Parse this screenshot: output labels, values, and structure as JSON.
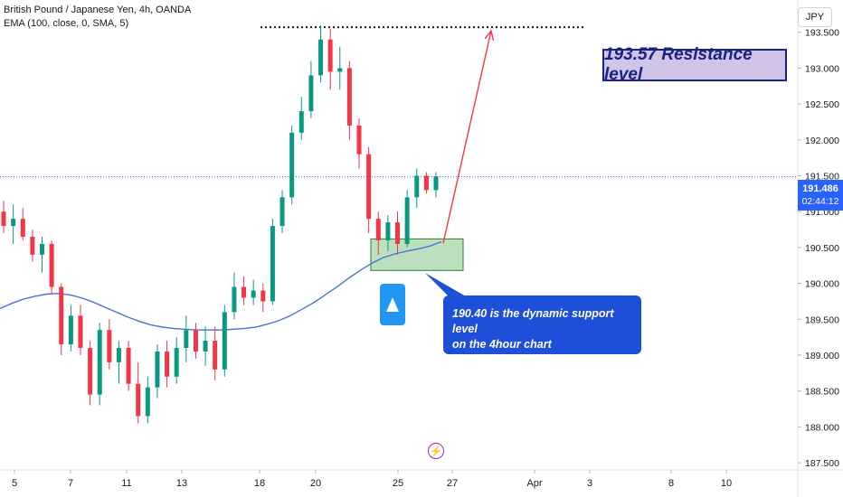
{
  "header": {
    "symbol_line": "British Pound / Japanese Yen, 4h, OANDA",
    "indicator_line": "EMA (100, close, 0, SMA, 5)"
  },
  "currency_unit": "JPY",
  "last_price": {
    "price": "191.486",
    "countdown": "02:44:12"
  },
  "annotations": {
    "resistance_label": "193.57 Resistance level",
    "support_label_line1": "190.40 is the dynamic support level",
    "support_label_line2": "on the 4hour chart"
  },
  "colors": {
    "up": "#089981",
    "down": "#f23645",
    "ema": "#4a72d8",
    "accent": "#2962ff",
    "support_zone": "#a5d6a7",
    "arrow": "#f23645"
  },
  "chart_data": {
    "type": "candlestick",
    "title": "",
    "ylim": [
      187.4,
      193.95
    ],
    "y_ticks": [
      "187.500",
      "188.000",
      "188.500",
      "189.000",
      "189.500",
      "190.000",
      "190.500",
      "191.000",
      "191.500",
      "192.000",
      "192.500",
      "193.000",
      "193.500"
    ],
    "x_tick_labels": [
      "5",
      "7",
      "11",
      "13",
      "18",
      "20",
      "25",
      "27",
      "Apr",
      "3",
      "8",
      "10"
    ],
    "resistance_level": 193.57,
    "support_zone": [
      190.18,
      190.62
    ],
    "current_price": 191.486,
    "ema_series": [
      189.65,
      189.72,
      189.78,
      189.82,
      189.85,
      189.86,
      189.84,
      189.8,
      189.74,
      189.67,
      189.6,
      189.53,
      189.47,
      189.42,
      189.39,
      189.37,
      189.36,
      189.35,
      189.35,
      189.35,
      189.36,
      189.37,
      189.39,
      189.43,
      189.48,
      189.55,
      189.64,
      189.73,
      189.84,
      189.95,
      190.07,
      190.18,
      190.28,
      190.36,
      190.41,
      190.45,
      190.48,
      190.52,
      190.58
    ],
    "candles": [
      {
        "o": 191.0,
        "h": 191.15,
        "l": 190.7,
        "c": 190.8
      },
      {
        "o": 190.8,
        "h": 191.1,
        "l": 190.55,
        "c": 190.9
      },
      {
        "o": 190.9,
        "h": 191.05,
        "l": 190.6,
        "c": 190.65
      },
      {
        "o": 190.65,
        "h": 190.75,
        "l": 190.3,
        "c": 190.4
      },
      {
        "o": 190.4,
        "h": 190.65,
        "l": 190.15,
        "c": 190.55
      },
      {
        "o": 190.55,
        "h": 190.6,
        "l": 189.85,
        "c": 189.95
      },
      {
        "o": 189.95,
        "h": 190.0,
        "l": 189.0,
        "c": 189.15
      },
      {
        "o": 189.15,
        "h": 189.7,
        "l": 189.05,
        "c": 189.55
      },
      {
        "o": 189.55,
        "h": 189.7,
        "l": 189.0,
        "c": 189.1
      },
      {
        "o": 189.1,
        "h": 189.2,
        "l": 188.3,
        "c": 188.45
      },
      {
        "o": 188.45,
        "h": 189.45,
        "l": 188.3,
        "c": 189.35
      },
      {
        "o": 189.35,
        "h": 189.5,
        "l": 188.8,
        "c": 188.9
      },
      {
        "o": 188.9,
        "h": 189.2,
        "l": 188.6,
        "c": 189.1
      },
      {
        "o": 189.1,
        "h": 189.2,
        "l": 188.5,
        "c": 188.6
      },
      {
        "o": 188.6,
        "h": 188.9,
        "l": 188.05,
        "c": 188.15
      },
      {
        "o": 188.15,
        "h": 188.7,
        "l": 188.05,
        "c": 188.55
      },
      {
        "o": 188.55,
        "h": 189.15,
        "l": 188.4,
        "c": 189.05
      },
      {
        "o": 189.05,
        "h": 189.2,
        "l": 188.55,
        "c": 188.7
      },
      {
        "o": 188.7,
        "h": 189.25,
        "l": 188.6,
        "c": 189.1
      },
      {
        "o": 189.1,
        "h": 189.55,
        "l": 188.9,
        "c": 189.35
      },
      {
        "o": 189.35,
        "h": 189.45,
        "l": 188.95,
        "c": 189.05
      },
      {
        "o": 189.05,
        "h": 189.4,
        "l": 188.85,
        "c": 189.2
      },
      {
        "o": 189.2,
        "h": 189.4,
        "l": 188.65,
        "c": 188.8
      },
      {
        "o": 188.8,
        "h": 189.7,
        "l": 188.7,
        "c": 189.6
      },
      {
        "o": 189.6,
        "h": 190.15,
        "l": 189.5,
        "c": 189.95
      },
      {
        "o": 189.95,
        "h": 190.1,
        "l": 189.7,
        "c": 189.8
      },
      {
        "o": 189.8,
        "h": 190.05,
        "l": 189.7,
        "c": 189.9
      },
      {
        "o": 189.9,
        "h": 190.0,
        "l": 189.6,
        "c": 189.75
      },
      {
        "o": 189.75,
        "h": 190.9,
        "l": 189.7,
        "c": 190.8
      },
      {
        "o": 190.8,
        "h": 191.3,
        "l": 190.7,
        "c": 191.2
      },
      {
        "o": 191.2,
        "h": 192.2,
        "l": 191.1,
        "c": 192.1
      },
      {
        "o": 192.1,
        "h": 192.6,
        "l": 192.0,
        "c": 192.4
      },
      {
        "o": 192.4,
        "h": 193.1,
        "l": 192.3,
        "c": 192.9
      },
      {
        "o": 192.9,
        "h": 193.6,
        "l": 192.8,
        "c": 193.4
      },
      {
        "o": 193.4,
        "h": 193.55,
        "l": 192.7,
        "c": 192.95
      },
      {
        "o": 192.95,
        "h": 193.3,
        "l": 192.7,
        "c": 193.0
      },
      {
        "o": 193.0,
        "h": 193.1,
        "l": 192.0,
        "c": 192.2
      },
      {
        "o": 192.2,
        "h": 192.3,
        "l": 191.6,
        "c": 191.8
      },
      {
        "o": 191.8,
        "h": 191.9,
        "l": 190.7,
        "c": 190.9
      },
      {
        "o": 190.9,
        "h": 191.0,
        "l": 190.4,
        "c": 190.6
      },
      {
        "o": 190.6,
        "h": 190.95,
        "l": 190.45,
        "c": 190.85
      },
      {
        "o": 190.85,
        "h": 191.0,
        "l": 190.4,
        "c": 190.55
      },
      {
        "o": 190.55,
        "h": 191.3,
        "l": 190.5,
        "c": 191.2
      },
      {
        "o": 191.2,
        "h": 191.6,
        "l": 191.05,
        "c": 191.5
      },
      {
        "o": 191.5,
        "h": 191.55,
        "l": 191.25,
        "c": 191.3
      },
      {
        "o": 191.3,
        "h": 191.55,
        "l": 191.2,
        "c": 191.49
      }
    ]
  }
}
